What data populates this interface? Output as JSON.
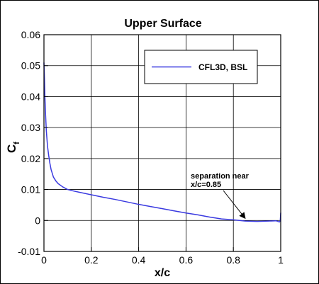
{
  "chart_data": {
    "type": "line",
    "title": "Upper Surface",
    "xlabel": "x/c",
    "ylabel": "C",
    "ylabel_subscript": "f",
    "xlim": [
      0,
      1
    ],
    "ylim": [
      -0.01,
      0.06
    ],
    "xticks": [
      0,
      0.2,
      0.4,
      0.6,
      0.8,
      1
    ],
    "xtick_labels": [
      "0",
      "0.2",
      "0.4",
      "0.6",
      "0.8",
      "1"
    ],
    "yticks": [
      -0.01,
      0,
      0.01,
      0.02,
      0.03,
      0.04,
      0.05,
      0.06
    ],
    "ytick_labels": [
      "-0.01",
      "0",
      "0.01",
      "0.02",
      "0.03",
      "0.04",
      "0.05",
      "0.06"
    ],
    "grid": true,
    "legend_position": "top-right",
    "series": [
      {
        "name": "CFL3D, BSL",
        "color": "#3a3ae0",
        "x": [
          0.0,
          0.002,
          0.004,
          0.007,
          0.01,
          0.015,
          0.02,
          0.025,
          0.03,
          0.04,
          0.05,
          0.06,
          0.08,
          0.1,
          0.12,
          0.15,
          0.2,
          0.25,
          0.3,
          0.35,
          0.4,
          0.45,
          0.5,
          0.55,
          0.6,
          0.65,
          0.7,
          0.75,
          0.8,
          0.85,
          0.9,
          0.95,
          0.98,
          0.995,
          0.998,
          1.0
        ],
        "y": [
          0.051,
          0.046,
          0.04,
          0.034,
          0.029,
          0.024,
          0.021,
          0.0185,
          0.0165,
          0.014,
          0.0128,
          0.0119,
          0.0108,
          0.01,
          0.0096,
          0.0091,
          0.0083,
          0.0075,
          0.0068,
          0.006,
          0.0052,
          0.0045,
          0.0038,
          0.0031,
          0.0024,
          0.0018,
          0.0011,
          0.0005,
          0.0002,
          -0.0002,
          -0.0003,
          -0.0002,
          -0.0001,
          -0.0005,
          -0.0001,
          0.0025
        ]
      }
    ],
    "annotations": [
      {
        "text_lines": [
          "separation near",
          "x/c=0.85"
        ],
        "target_x": 0.85,
        "target_y": 0.0
      }
    ]
  }
}
